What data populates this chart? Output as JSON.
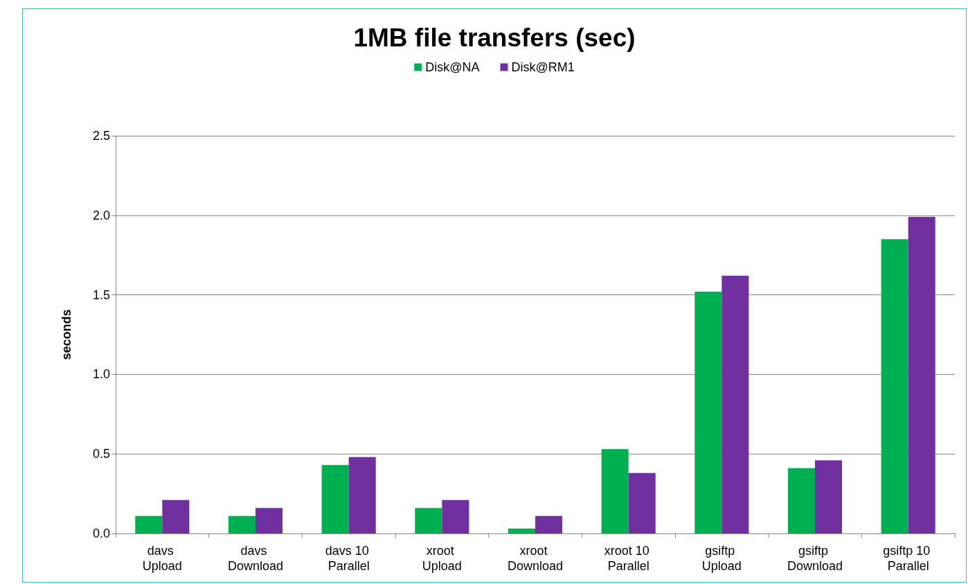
{
  "chart_data": {
    "type": "bar",
    "title": "1MB file transfers (sec)",
    "ylabel": "seconds",
    "categories": [
      "davs Upload",
      "davs Download",
      "davs 10 Parallel",
      "xroot Upload",
      "xroot Download",
      "xroot 10 Parallel",
      "gsiftp Upload",
      "gsiftp Download",
      "gsiftp 10 Parallel"
    ],
    "series": [
      {
        "name": "Disk@NA",
        "color": "#00b050",
        "values": [
          0.11,
          0.11,
          0.43,
          0.16,
          0.03,
          0.53,
          1.52,
          0.41,
          1.85
        ]
      },
      {
        "name": "Disk@RM1",
        "color": "#7030a0",
        "values": [
          0.21,
          0.16,
          0.48,
          0.21,
          0.11,
          0.38,
          1.62,
          0.46,
          1.99
        ]
      }
    ],
    "ylim": [
      0,
      2.5
    ],
    "yticks": [
      {
        "value": 0,
        "label": "0.0"
      },
      {
        "value": 0.5,
        "label": "0.5"
      },
      {
        "value": 1,
        "label": "1.0"
      },
      {
        "value": 1.5,
        "label": "1.5"
      },
      {
        "value": 2,
        "label": "2.0"
      },
      {
        "value": 2.5,
        "label": "2.5"
      }
    ],
    "grid": "y",
    "legend": "top"
  }
}
